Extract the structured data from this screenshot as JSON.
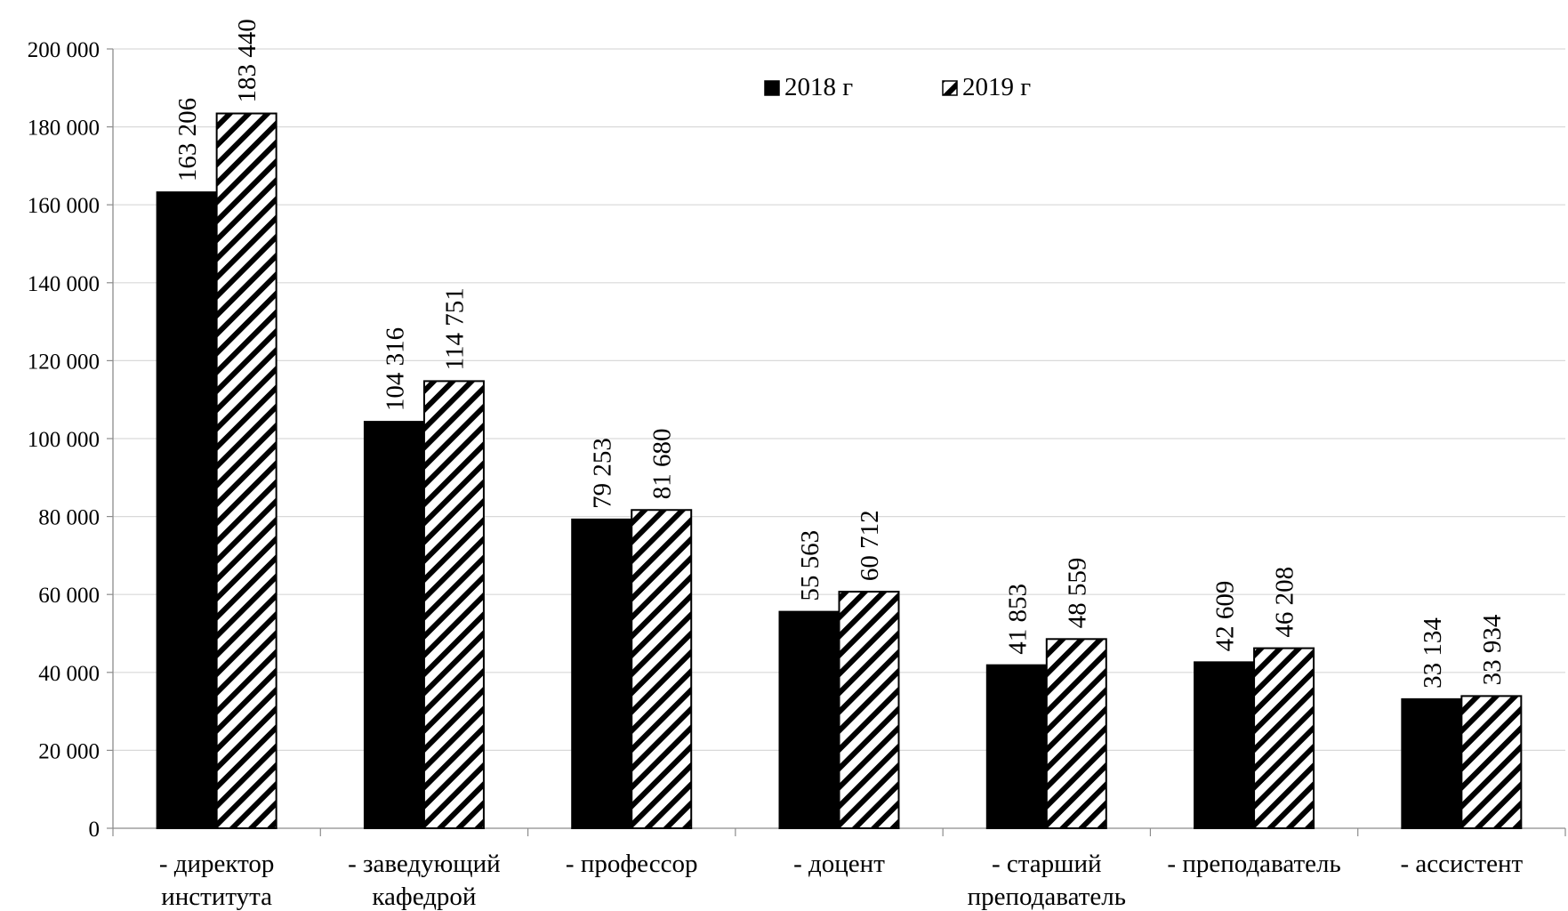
{
  "chart_data": {
    "type": "bar",
    "title": "",
    "xlabel": "",
    "ylabel": "",
    "ylim": [
      0,
      200000
    ],
    "ytick_step": 20000,
    "yticks": [
      "0",
      "20 000",
      "40 000",
      "60 000",
      "80 000",
      "100 000",
      "120 000",
      "140 000",
      "160 000",
      "180 000",
      "200 000"
    ],
    "grid": true,
    "legend_position": "top-center",
    "categories": [
      "- директор института",
      "- заведующий кафедрой",
      "- профессор",
      "- доцент",
      "- старший преподаватель",
      "- преподаватель",
      "- ассистент"
    ],
    "category_lines": [
      [
        "- директор",
        "института"
      ],
      [
        "- заведующий",
        "кафедрой"
      ],
      [
        "- профессор"
      ],
      [
        "- доцент"
      ],
      [
        "- старший",
        "преподаватель"
      ],
      [
        "- преподаватель"
      ],
      [
        "- ассистент"
      ]
    ],
    "series": [
      {
        "name": "2018 г",
        "fill": "solid",
        "color": "#000000",
        "values": [
          163206,
          104316,
          79253,
          55563,
          41853,
          42609,
          33134
        ],
        "labels": [
          "163 206",
          "104 316",
          "79 253",
          "55 563",
          "41 853",
          "42 609",
          "33 134"
        ]
      },
      {
        "name": "2019 г",
        "fill": "hatched",
        "color": "#000000",
        "values": [
          183440,
          114751,
          81680,
          60712,
          48559,
          46208,
          33934
        ],
        "labels": [
          "183 440",
          "114 751",
          "81 680",
          "60 712",
          "48 559",
          "46 208",
          "33 934"
        ]
      }
    ]
  }
}
